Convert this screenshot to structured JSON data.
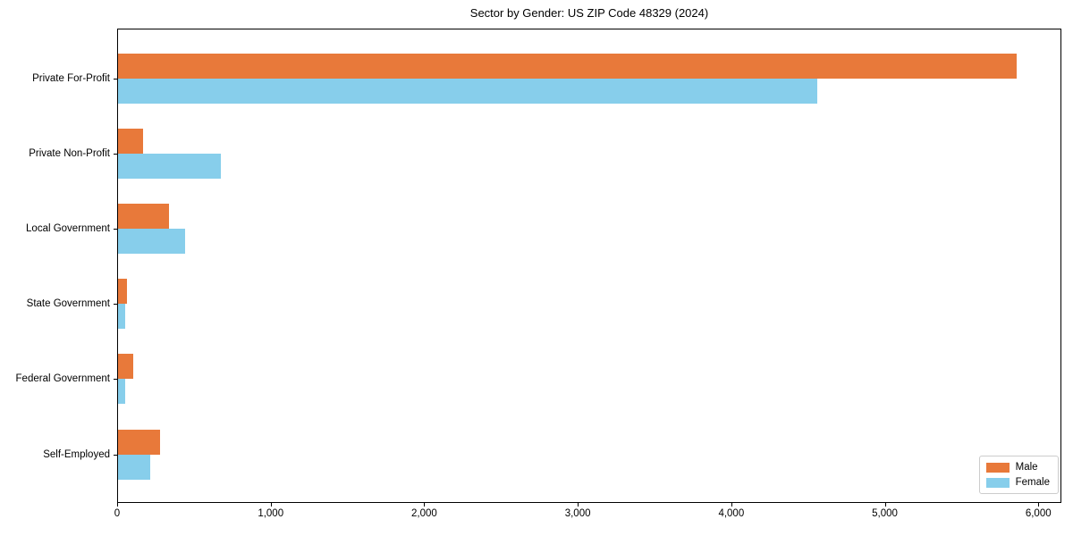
{
  "chart_data": {
    "type": "bar",
    "orientation": "horizontal",
    "title": "Sector by Gender: US ZIP Code 48329 (2024)",
    "categories": [
      "Private For-Profit",
      "Private Non-Profit",
      "Local Government",
      "State Government",
      "Federal Government",
      "Self-Employed"
    ],
    "series": [
      {
        "name": "Male",
        "color": "#e8793a",
        "values": [
          5855,
          163,
          334,
          58,
          99,
          275
        ]
      },
      {
        "name": "Female",
        "color": "#87ceeb",
        "values": [
          4555,
          670,
          437,
          47,
          47,
          208
        ]
      }
    ],
    "xlabel": "",
    "ylabel": "",
    "xlim": [
      0,
      6150
    ],
    "x_ticks": [
      0,
      1000,
      2000,
      3000,
      4000,
      5000,
      6000
    ],
    "x_tick_labels": [
      "0",
      "1,000",
      "2,000",
      "3,000",
      "4,000",
      "5,000",
      "6,000"
    ],
    "grid": false,
    "legend": {
      "position": "lower right",
      "entries": [
        "Male",
        "Female"
      ]
    },
    "colors": {
      "male": "#e8793a",
      "female": "#87ceeb",
      "spine": "#000000",
      "legend_border": "#cccccc",
      "background": "#ffffff"
    }
  }
}
